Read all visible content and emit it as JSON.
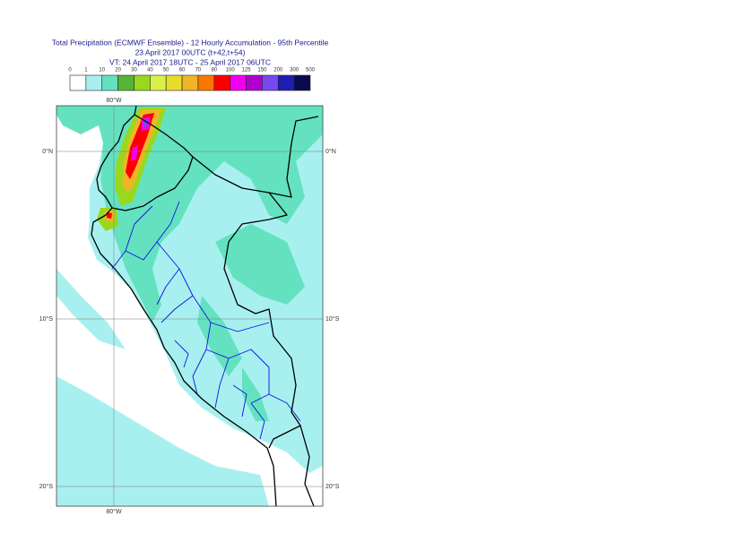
{
  "title": {
    "lines": [
      "Total Precipitation (ECMWF Ensemble) - 12 Hourly Accumulation - 95th Percentile",
      "23 April 2017 00UTC (t+42,t+54)",
      "VT: 24 April 2017 18UTC - 25 April 2017 06UTC"
    ]
  },
  "legend": {
    "labels": [
      "0",
      "1",
      "10",
      "20",
      "30",
      "40",
      "50",
      "60",
      "70",
      "80",
      "100",
      "125",
      "150",
      "200",
      "300",
      "500"
    ],
    "colors": [
      "#ffffff",
      "#a8f0f0",
      "#64e2c0",
      "#56b436",
      "#98d81e",
      "#d8f04a",
      "#e8dc2a",
      "#f0b428",
      "#fa7800",
      "#fa0000",
      "#f000f0",
      "#b000d0",
      "#7848f0",
      "#1e1eb4",
      "#0a0a50"
    ]
  },
  "grid_labels": {
    "lon": [
      "80°W"
    ],
    "lat": [
      "0°N",
      "10°S",
      "20°S"
    ]
  }
}
